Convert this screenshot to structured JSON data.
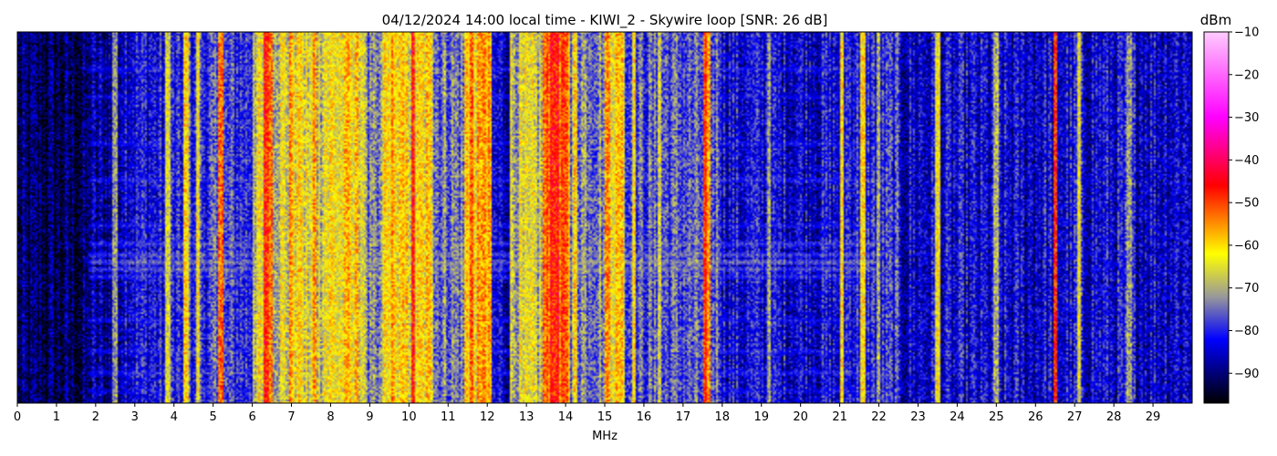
{
  "chart_data": {
    "type": "heatmap",
    "title": "04/12/2024 14:00 local time - KIWI_2 - Skywire loop [SNR: 26 dB]",
    "xlabel": "MHz",
    "ylabel": "",
    "xlim": [
      0,
      30
    ],
    "x_ticks": [
      "0",
      "1",
      "2",
      "3",
      "4",
      "5",
      "6",
      "7",
      "8",
      "9",
      "10",
      "11",
      "12",
      "13",
      "14",
      "15",
      "16",
      "17",
      "18",
      "19",
      "20",
      "21",
      "22",
      "23",
      "24",
      "25",
      "26",
      "27",
      "28",
      "29"
    ],
    "colorbar": {
      "label": "dBm",
      "range": [
        -97,
        -10
      ],
      "ticks": [
        "−10",
        "−20",
        "−30",
        "−40",
        "−50",
        "−60",
        "−70",
        "−80",
        "−90"
      ],
      "tick_values": [
        -10,
        -20,
        -30,
        -40,
        -50,
        -60,
        -70,
        -80,
        -90
      ],
      "colormap": [
        [
          -97,
          "#000000"
        ],
        [
          -82,
          "#0000ff"
        ],
        [
          -72,
          "#999999"
        ],
        [
          -62,
          "#ffff00"
        ],
        [
          -46,
          "#ff0000"
        ],
        [
          -30,
          "#ff00ff"
        ],
        [
          -10,
          "#ffccff"
        ]
      ]
    },
    "floor_dbm": -90,
    "bands": [
      {
        "f0": 0.0,
        "f1": 1.8,
        "level": -92
      },
      {
        "f0": 1.8,
        "f1": 2.6,
        "level": -88
      },
      {
        "f0": 2.6,
        "f1": 4.2,
        "level": -82
      },
      {
        "f0": 4.2,
        "f1": 6.0,
        "level": -79
      },
      {
        "f0": 6.0,
        "f1": 7.8,
        "level": -66
      },
      {
        "f0": 7.8,
        "f1": 8.9,
        "level": -63
      },
      {
        "f0": 8.9,
        "f1": 9.3,
        "level": -76
      },
      {
        "f0": 9.3,
        "f1": 10.6,
        "level": -63
      },
      {
        "f0": 10.6,
        "f1": 11.4,
        "level": -74
      },
      {
        "f0": 11.4,
        "f1": 12.1,
        "level": -60
      },
      {
        "f0": 12.1,
        "f1": 12.6,
        "level": -84
      },
      {
        "f0": 12.6,
        "f1": 13.4,
        "level": -68
      },
      {
        "f0": 13.4,
        "f1": 14.1,
        "level": -54
      },
      {
        "f0": 14.1,
        "f1": 15.0,
        "level": -72
      },
      {
        "f0": 15.0,
        "f1": 15.5,
        "level": -60
      },
      {
        "f0": 15.5,
        "f1": 17.5,
        "level": -77
      },
      {
        "f0": 17.5,
        "f1": 18.0,
        "level": -75
      },
      {
        "f0": 18.0,
        "f1": 21.0,
        "level": -83
      },
      {
        "f0": 21.0,
        "f1": 22.5,
        "level": -80
      },
      {
        "f0": 22.5,
        "f1": 26.0,
        "level": -84
      },
      {
        "f0": 26.0,
        "f1": 30.0,
        "level": -83
      }
    ],
    "carriers": [
      {
        "f": 2.5,
        "level": -72
      },
      {
        "f": 3.85,
        "level": -66
      },
      {
        "f": 4.3,
        "level": -60
      },
      {
        "f": 4.6,
        "level": -62
      },
      {
        "f": 5.2,
        "level": -52
      },
      {
        "f": 6.35,
        "level": -48
      },
      {
        "f": 6.45,
        "level": -52
      },
      {
        "f": 7.0,
        "level": -55
      },
      {
        "f": 7.2,
        "level": -60
      },
      {
        "f": 7.6,
        "level": -55
      },
      {
        "f": 8.45,
        "level": -58
      },
      {
        "f": 9.6,
        "level": -56
      },
      {
        "f": 10.1,
        "level": -48
      },
      {
        "f": 10.5,
        "level": -58
      },
      {
        "f": 11.6,
        "level": -52
      },
      {
        "f": 11.9,
        "level": -55
      },
      {
        "f": 13.65,
        "level": -46
      },
      {
        "f": 13.8,
        "level": -47
      },
      {
        "f": 13.95,
        "level": -50
      },
      {
        "f": 14.25,
        "level": -60
      },
      {
        "f": 15.1,
        "level": -55
      },
      {
        "f": 15.35,
        "level": -58
      },
      {
        "f": 15.75,
        "level": -62
      },
      {
        "f": 16.4,
        "level": -66
      },
      {
        "f": 17.55,
        "level": -50
      },
      {
        "f": 17.65,
        "level": -56
      },
      {
        "f": 19.2,
        "level": -72
      },
      {
        "f": 21.05,
        "level": -62
      },
      {
        "f": 21.6,
        "level": -62
      },
      {
        "f": 22.0,
        "level": -70
      },
      {
        "f": 23.5,
        "level": -64
      },
      {
        "f": 25.0,
        "level": -70
      },
      {
        "f": 26.5,
        "level": -50
      },
      {
        "f": 27.1,
        "level": -66
      },
      {
        "f": 28.4,
        "level": -72
      }
    ],
    "interference_rows": [
      {
        "t": 0.1,
        "level": -80
      },
      {
        "t": 0.17,
        "level": -82
      },
      {
        "t": 0.3,
        "level": -81
      },
      {
        "t": 0.4,
        "level": -79
      },
      {
        "t": 0.52,
        "level": -80
      },
      {
        "t": 0.57,
        "level": -76
      },
      {
        "t": 0.6,
        "level": -75
      },
      {
        "t": 0.62,
        "level": -72
      },
      {
        "t": 0.64,
        "level": -74
      },
      {
        "t": 0.66,
        "level": -78
      },
      {
        "t": 0.78,
        "level": -81
      },
      {
        "t": 0.86,
        "level": -80
      },
      {
        "t": 0.92,
        "level": -79
      },
      {
        "t": 0.97,
        "level": -82
      }
    ]
  }
}
